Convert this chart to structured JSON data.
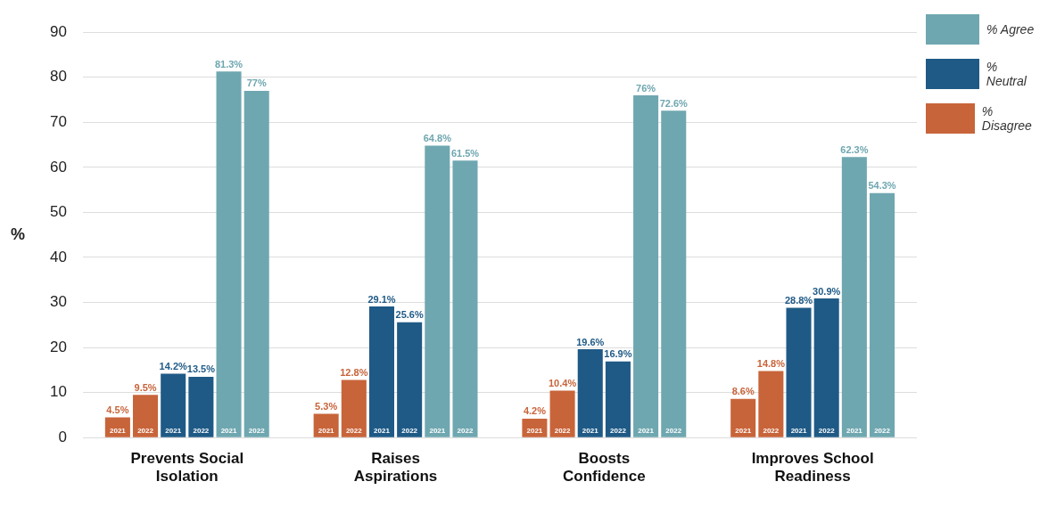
{
  "chart_data": {
    "type": "bar",
    "ylabel": "%",
    "categories": [
      "Prevents Social Isolation",
      "Raises Aspirations",
      "Boosts Confidence",
      "Improves School Readiness"
    ],
    "series": [
      {
        "name": "% Disagree",
        "color": "#c8643a",
        "values": [
          4.5,
          5.3,
          4.2,
          8.6
        ],
        "value_labels": [
          "4.5%",
          "5.3%",
          "4.2%",
          "8.6%"
        ]
      },
      {
        "color": "#c8643a",
        "values": [
          9.5,
          12.8,
          10.4,
          14.8
        ],
        "value_labels": [
          "9.5%",
          "12.8%",
          "10.4%",
          "14.8%"
        ]
      },
      {
        "name": "% Neutral",
        "color": "#1f5a86",
        "values": [
          14.2,
          29.1,
          19.6,
          28.8
        ],
        "value_labels": [
          "14.2%",
          "29.1%",
          "19.6%",
          "28.8%"
        ]
      },
      {
        "color": "#1f5a86",
        "values": [
          13.5,
          25.6,
          16.9,
          30.9
        ],
        "value_labels": [
          "13.5%",
          "25.6%",
          "16.9%",
          "30.9%"
        ]
      },
      {
        "name": "% Agree",
        "color": "#6fa7b0",
        "values": [
          81.3,
          64.8,
          76,
          62.3
        ],
        "value_labels": [
          "81.3%",
          "64.8%",
          "76%",
          "62.3%"
        ]
      },
      {
        "color": "#6fa7b0",
        "values": [
          77,
          61.5,
          72.6,
          54.3
        ],
        "value_labels": [
          "77%",
          "61.5%",
          "72.6%",
          "54.3%"
        ]
      }
    ],
    "annotations": [
      "2021",
      "2022"
    ],
    "ylim": [
      0,
      90
    ],
    "yticks": [
      0,
      10,
      20,
      30,
      40,
      50,
      60,
      70,
      80,
      90
    ],
    "grid": "y",
    "legend": "top right"
  }
}
